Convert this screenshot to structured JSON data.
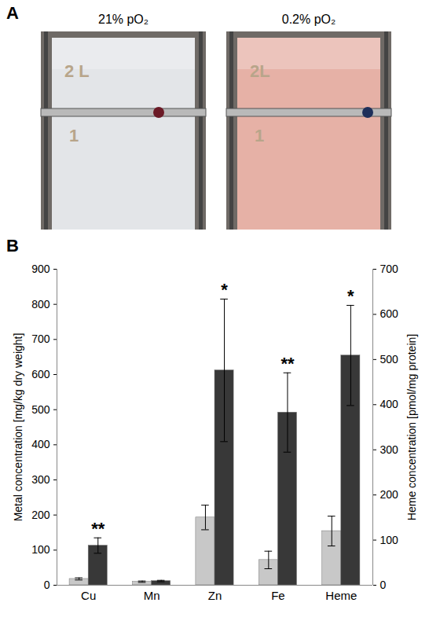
{
  "panel_a": {
    "letter": "A",
    "photos": [
      {
        "label": "21% pO₂",
        "marks": [
          "2 L",
          "1"
        ],
        "color": "#e3e5e8"
      },
      {
        "label": "0.2% pO₂",
        "marks": [
          "2L",
          "1"
        ],
        "color": "#e6b1a6"
      }
    ]
  },
  "chart_data": {
    "type": "bar",
    "panel": "B",
    "categories": [
      "Cu",
      "Mn",
      "Zn",
      "Fe",
      "Heme"
    ],
    "ylabel": "Metal concentration [mg/kg dry weight]",
    "y2label": "Heme concentration [pmol/mg protein]",
    "ylim": [
      0,
      900
    ],
    "yticks": [
      0,
      100,
      200,
      300,
      400,
      500,
      600,
      700,
      800,
      900
    ],
    "y2lim": [
      0,
      700
    ],
    "y2ticks": [
      0,
      100,
      200,
      300,
      400,
      500,
      600,
      700
    ],
    "grid": false,
    "series": [
      {
        "color": "#c8c8c8",
        "values": [
          18,
          10,
          193,
          72,
          null
        ],
        "errors": [
          3,
          2,
          35,
          25,
          null
        ]
      },
      {
        "color": "#383838",
        "values": [
          113,
          12,
          612,
          492,
          null
        ],
        "errors": [
          22,
          2,
          203,
          113,
          null
        ]
      },
      {
        "color": "#c8c8c8",
        "axis": "y2",
        "values": [
          null,
          null,
          null,
          null,
          120
        ],
        "errors": [
          null,
          null,
          null,
          null,
          33
        ]
      },
      {
        "color": "#383838",
        "axis": "y2",
        "values": [
          null,
          null,
          null,
          null,
          509
        ],
        "errors": [
          null,
          null,
          null,
          null,
          111
        ]
      }
    ],
    "annotations": [
      {
        "category": "Cu",
        "text": "**"
      },
      {
        "category": "Zn",
        "text": "*"
      },
      {
        "category": "Fe",
        "text": "**"
      },
      {
        "category": "Heme",
        "text": "*"
      }
    ]
  }
}
